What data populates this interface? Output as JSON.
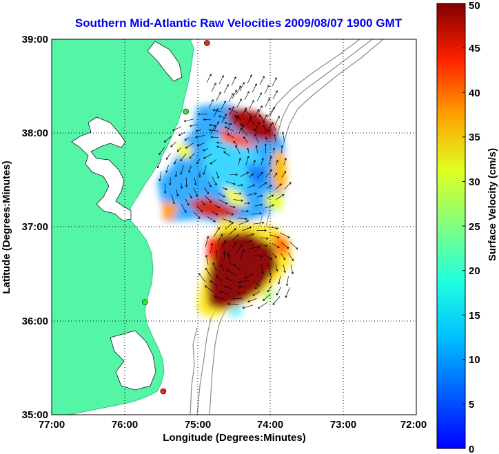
{
  "chart_data": {
    "type": "heatmap",
    "title": "Southern Mid-Atlantic Raw Velocities 2009/08/07 1900 GMT",
    "xlabel": "Longitude (Degrees:Minutes)",
    "ylabel": "Latitude (Degrees:Minutes)",
    "x_ticks": [
      "77:00",
      "76:00",
      "75:00",
      "74:00",
      "73:00",
      "72:00"
    ],
    "y_ticks": [
      "39:00",
      "38:00",
      "37:00",
      "36:00",
      "35:00"
    ],
    "xlim": [
      -77,
      -72
    ],
    "ylim": [
      35,
      39
    ],
    "grid": true,
    "colorbar": {
      "label": "Surface Velocity (cm/s)",
      "range": [
        0,
        50
      ],
      "ticks": [
        "0",
        "5",
        "10",
        "15",
        "20",
        "25",
        "30",
        "35",
        "40",
        "45",
        "50"
      ]
    },
    "colors": {
      "title": "#0000ee",
      "land": "#55f5a8",
      "bathymetry": "#8a8a8a",
      "vectors": "#000000",
      "station_active": "#2ee82e",
      "station_inactive": "#ee2222"
    },
    "stations": [
      {
        "lon": -74.87,
        "lat": 38.96,
        "status": "inactive"
      },
      {
        "lon": -75.16,
        "lat": 38.23,
        "status": "active"
      },
      {
        "lon": -75.72,
        "lat": 36.2,
        "status": "active"
      },
      {
        "lon": -75.47,
        "lat": 35.25,
        "status": "inactive"
      }
    ]
  }
}
